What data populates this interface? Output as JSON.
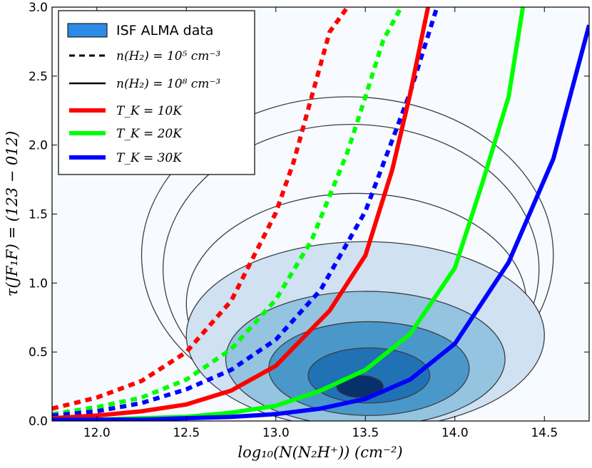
{
  "chart_data": {
    "type": "line",
    "title": "",
    "xlabel": "log₁₀(N(N₂H⁺)) (cm⁻²)",
    "ylabel": "τ(JF₁F) = (123 − 012)",
    "xlim": [
      11.75,
      14.75
    ],
    "ylim": [
      0.0,
      3.0
    ],
    "x_ticks": [
      "12.0",
      "12.5",
      "13.0",
      "13.5",
      "14.0",
      "14.5"
    ],
    "x_tick_values": [
      12.0,
      12.5,
      13.0,
      13.5,
      14.0,
      14.5
    ],
    "y_ticks": [
      "0.0",
      "0.5",
      "1.0",
      "1.5",
      "2.0",
      "2.5",
      "3.0"
    ],
    "y_tick_values": [
      0.0,
      0.5,
      1.0,
      1.5,
      2.0,
      2.5,
      3.0
    ],
    "legend_position": "top-left",
    "legend": [
      {
        "label": "ISF ALMA data",
        "style": "patch",
        "color": "#2b8be6"
      },
      {
        "label": "n(H₂) = 10⁵ cm⁻³",
        "style": "dashed",
        "color": "#000000"
      },
      {
        "label": "n(H₂) = 10⁸ cm⁻³",
        "style": "solid",
        "color": "#000000"
      },
      {
        "label": "T_K = 10K",
        "style": "solid-thick",
        "color": "#ff0000"
      },
      {
        "label": "T_K = 20K",
        "style": "solid-thick",
        "color": "#00ff00"
      },
      {
        "label": "T_K = 30K",
        "style": "solid-thick",
        "color": "#0000ff"
      }
    ],
    "series": [
      {
        "name": "T_K=10K, n=1e5",
        "color": "#ff0000",
        "dash": true,
        "x": [
          11.75,
          12.0,
          12.25,
          12.5,
          12.75,
          13.0,
          13.1,
          13.2,
          13.3,
          13.4
        ],
        "y": [
          0.09,
          0.17,
          0.29,
          0.5,
          0.87,
          1.51,
          1.88,
          2.35,
          2.82,
          3.0
        ]
      },
      {
        "name": "T_K=20K, n=1e5",
        "color": "#00ff00",
        "dash": true,
        "x": [
          11.75,
          12.0,
          12.25,
          12.5,
          12.75,
          13.0,
          13.2,
          13.4,
          13.5,
          13.6,
          13.7
        ],
        "y": [
          0.05,
          0.1,
          0.17,
          0.3,
          0.52,
          0.88,
          1.31,
          1.95,
          2.35,
          2.76,
          3.0
        ]
      },
      {
        "name": "T_K=30K, n=1e5",
        "color": "#0000ff",
        "dash": true,
        "x": [
          11.75,
          12.0,
          12.25,
          12.5,
          12.75,
          13.0,
          13.25,
          13.5,
          13.75,
          13.9
        ],
        "y": [
          0.04,
          0.07,
          0.13,
          0.23,
          0.37,
          0.59,
          0.95,
          1.52,
          2.38,
          3.0
        ]
      },
      {
        "name": "T_K=10K, n=1e8",
        "color": "#ff0000",
        "dash": false,
        "x": [
          11.75,
          12.0,
          12.25,
          12.5,
          12.75,
          13.0,
          13.15,
          13.3,
          13.5,
          13.65,
          13.75,
          13.85
        ],
        "y": [
          0.02,
          0.04,
          0.07,
          0.12,
          0.22,
          0.4,
          0.6,
          0.8,
          1.2,
          1.82,
          2.37,
          3.0
        ]
      },
      {
        "name": "T_K=20K, n=1e8",
        "color": "#00ff00",
        "dash": false,
        "x": [
          11.75,
          12.0,
          12.25,
          12.5,
          12.75,
          13.0,
          13.25,
          13.5,
          13.75,
          14.0,
          14.15,
          14.3,
          14.38
        ],
        "y": [
          0.01,
          0.01,
          0.02,
          0.03,
          0.06,
          0.11,
          0.22,
          0.37,
          0.63,
          1.11,
          1.71,
          2.35,
          3.0
        ]
      },
      {
        "name": "T_K=30K, n=1e8",
        "color": "#0000ff",
        "dash": false,
        "x": [
          11.75,
          12.0,
          12.25,
          12.5,
          12.75,
          13.0,
          13.25,
          13.5,
          13.75,
          14.0,
          14.3,
          14.55,
          14.75
        ],
        "y": [
          0.01,
          0.01,
          0.01,
          0.02,
          0.03,
          0.05,
          0.09,
          0.16,
          0.3,
          0.56,
          1.15,
          1.9,
          2.87
        ]
      }
    ],
    "density_contours": {
      "name": "ISF ALMA data",
      "filled_levels": [
        {
          "color": "#d0e1f2",
          "center": [
            13.5,
            0.62
          ],
          "rx": 1.0,
          "ry": 0.68
        },
        {
          "color": "#94c4df",
          "center": [
            13.5,
            0.45
          ],
          "rx": 0.78,
          "ry": 0.49
        },
        {
          "color": "#4a98c9",
          "center": [
            13.52,
            0.38
          ],
          "rx": 0.56,
          "ry": 0.34
        },
        {
          "color": "#2171b5",
          "center": [
            13.52,
            0.33
          ],
          "rx": 0.34,
          "ry": 0.2
        },
        {
          "color": "#08306b",
          "center": [
            13.47,
            0.25
          ],
          "rx": 0.13,
          "ry": 0.08
        }
      ],
      "line_levels": [
        {
          "center": [
            13.4,
            1.2
          ],
          "rx": 1.15,
          "ry": 1.15
        },
        {
          "center": [
            13.42,
            1.1
          ],
          "rx": 1.05,
          "ry": 1.05
        },
        {
          "center": [
            13.45,
            0.85
          ],
          "rx": 0.95,
          "ry": 0.8
        }
      ]
    }
  }
}
